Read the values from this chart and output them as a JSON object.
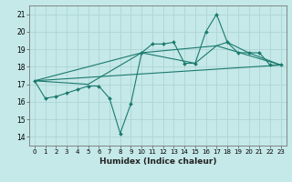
{
  "xlabel": "Humidex (Indice chaleur)",
  "bg_color": "#c5e8e8",
  "grid_color": "#aed4d4",
  "line_color": "#1a7a6e",
  "xlim": [
    -0.5,
    23.5
  ],
  "ylim": [
    13.5,
    21.5
  ],
  "xticks": [
    0,
    1,
    2,
    3,
    4,
    5,
    6,
    7,
    8,
    9,
    10,
    11,
    12,
    13,
    14,
    15,
    16,
    17,
    18,
    19,
    20,
    21,
    22,
    23
  ],
  "yticks": [
    14,
    15,
    16,
    17,
    18,
    19,
    20,
    21
  ],
  "line1_x": [
    0,
    1,
    2,
    3,
    4,
    5,
    6,
    7,
    8,
    9,
    10,
    11,
    12,
    13,
    14,
    15,
    16,
    17,
    18,
    19,
    20,
    21,
    22,
    23
  ],
  "line1_y": [
    17.2,
    16.2,
    16.3,
    16.5,
    16.7,
    16.9,
    16.9,
    16.2,
    14.2,
    15.9,
    18.8,
    19.3,
    19.3,
    19.4,
    18.2,
    18.2,
    20.0,
    21.0,
    19.4,
    18.8,
    18.8,
    18.8,
    18.1,
    18.1
  ],
  "line2_x": [
    0,
    5,
    10,
    15,
    17,
    18,
    20,
    23
  ],
  "line2_y": [
    17.2,
    17.0,
    18.8,
    18.2,
    19.2,
    19.4,
    18.8,
    18.1
  ],
  "line3_x": [
    0,
    23
  ],
  "line3_y": [
    17.2,
    18.1
  ],
  "line4_x": [
    0,
    10,
    17,
    23
  ],
  "line4_y": [
    17.2,
    18.8,
    19.2,
    18.1
  ],
  "marker": "D",
  "markersize": 2.0,
  "linewidth": 0.8,
  "xlabel_fontsize": 6.5,
  "tick_fontsize": 5.0
}
